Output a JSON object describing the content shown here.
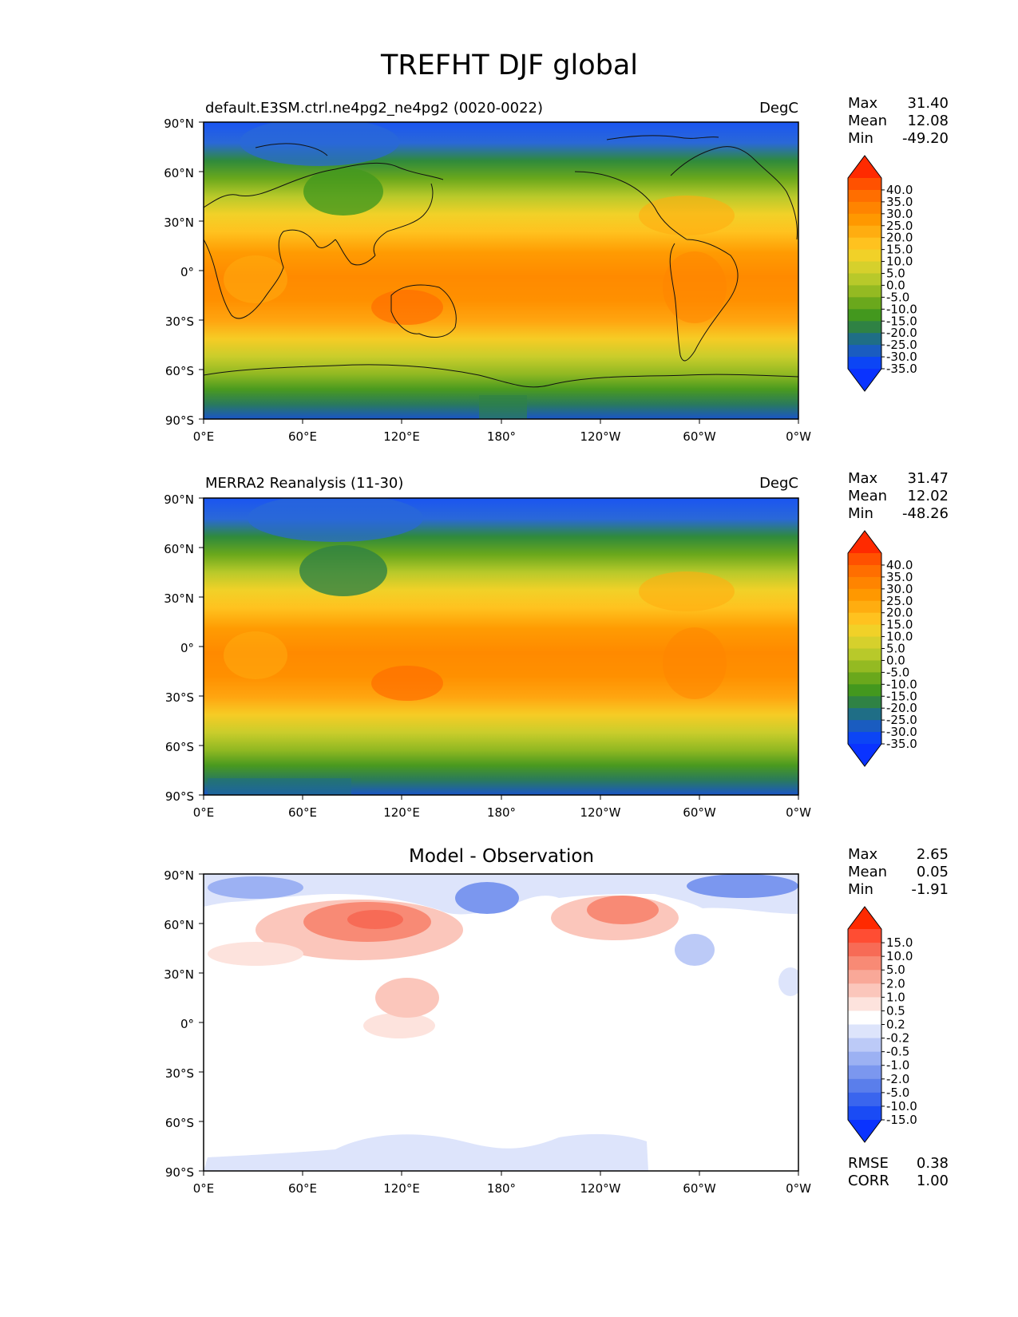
{
  "title": "TREFHT DJF global",
  "lat_ticks": [
    "90°N",
    "60°N",
    "30°N",
    "0°",
    "30°S",
    "60°S",
    "90°S"
  ],
  "lon_ticks": [
    "0°E",
    "60°E",
    "120°E",
    "180°",
    "120°W",
    "60°W",
    "0°W"
  ],
  "panels": [
    {
      "title_left": "default.E3SM.ctrl.ne4pg2_ne4pg2 (0020-0022)",
      "title_center": "",
      "units": "DegC",
      "stats": [
        {
          "label": "Max",
          "value": "31.40"
        },
        {
          "label": "Mean",
          "value": "12.08"
        },
        {
          "label": "Min",
          "value": "-49.20"
        }
      ],
      "colorbar_labels": [
        "40.0",
        "35.0",
        "30.0",
        "25.0",
        "20.0",
        "15.0",
        "10.0",
        "5.0",
        "0.0",
        "-5.0",
        "-10.0",
        "-15.0",
        "-20.0",
        "-25.0",
        "-30.0",
        "-35.0"
      ],
      "colorbar_colors": [
        "#ff2a00",
        "#ff5100",
        "#ff6e00",
        "#ff8400",
        "#ff9800",
        "#ffad10",
        "#ffc21f",
        "#f1d128",
        "#d6d02c",
        "#b8c92a",
        "#94ba22",
        "#6aa81c",
        "#43981e",
        "#2f8244",
        "#1f6e86",
        "#1a5cc0",
        "#0c45f5",
        "#0a33ff"
      ],
      "extremes": [
        "max",
        "mean",
        "min"
      ]
    },
    {
      "title_left": "MERRA2 Reanalysis (11-30)",
      "title_center": "",
      "units": "DegC",
      "stats": [
        {
          "label": "Max",
          "value": "31.47"
        },
        {
          "label": "Mean",
          "value": "12.02"
        },
        {
          "label": "Min",
          "value": "-48.26"
        }
      ],
      "colorbar_labels": [
        "40.0",
        "35.0",
        "30.0",
        "25.0",
        "20.0",
        "15.0",
        "10.0",
        "5.0",
        "0.0",
        "-5.0",
        "-10.0",
        "-15.0",
        "-20.0",
        "-25.0",
        "-30.0",
        "-35.0"
      ],
      "colorbar_colors": [
        "#ff2a00",
        "#ff5100",
        "#ff6e00",
        "#ff8400",
        "#ff9800",
        "#ffad10",
        "#ffc21f",
        "#f1d128",
        "#d6d02c",
        "#b8c92a",
        "#94ba22",
        "#6aa81c",
        "#43981e",
        "#2f8244",
        "#1f6e86",
        "#1a5cc0",
        "#0c45f5",
        "#0a33ff"
      ]
    },
    {
      "title_left": "",
      "title_center": "Model - Observation",
      "units": "",
      "stats": [
        {
          "label": "Max",
          "value": "2.65"
        },
        {
          "label": "Mean",
          "value": "0.05"
        },
        {
          "label": "Min",
          "value": "-1.91"
        }
      ],
      "colorbar_labels": [
        "15.0",
        "10.0",
        "5.0",
        "2.0",
        "1.0",
        "0.5",
        "0.2",
        "-0.2",
        "-0.5",
        "-1.0",
        "-2.0",
        "-5.0",
        "-10.0",
        "-15.0"
      ],
      "colorbar_colors": [
        "#ff2a00",
        "#ff4d33",
        "#f76b56",
        "#f88a75",
        "#f9a898",
        "#fbc6bb",
        "#fde3dd",
        "#ffffff",
        "#dde4fb",
        "#bccaf7",
        "#9cb1f3",
        "#7b97ef",
        "#5a7eeb",
        "#3a65ee",
        "#1a4bf5",
        "#0a33ff"
      ],
      "bottom_stats": [
        {
          "label": "RMSE",
          "value": "0.38"
        },
        {
          "label": "CORR",
          "value": "1.00"
        }
      ]
    }
  ]
}
